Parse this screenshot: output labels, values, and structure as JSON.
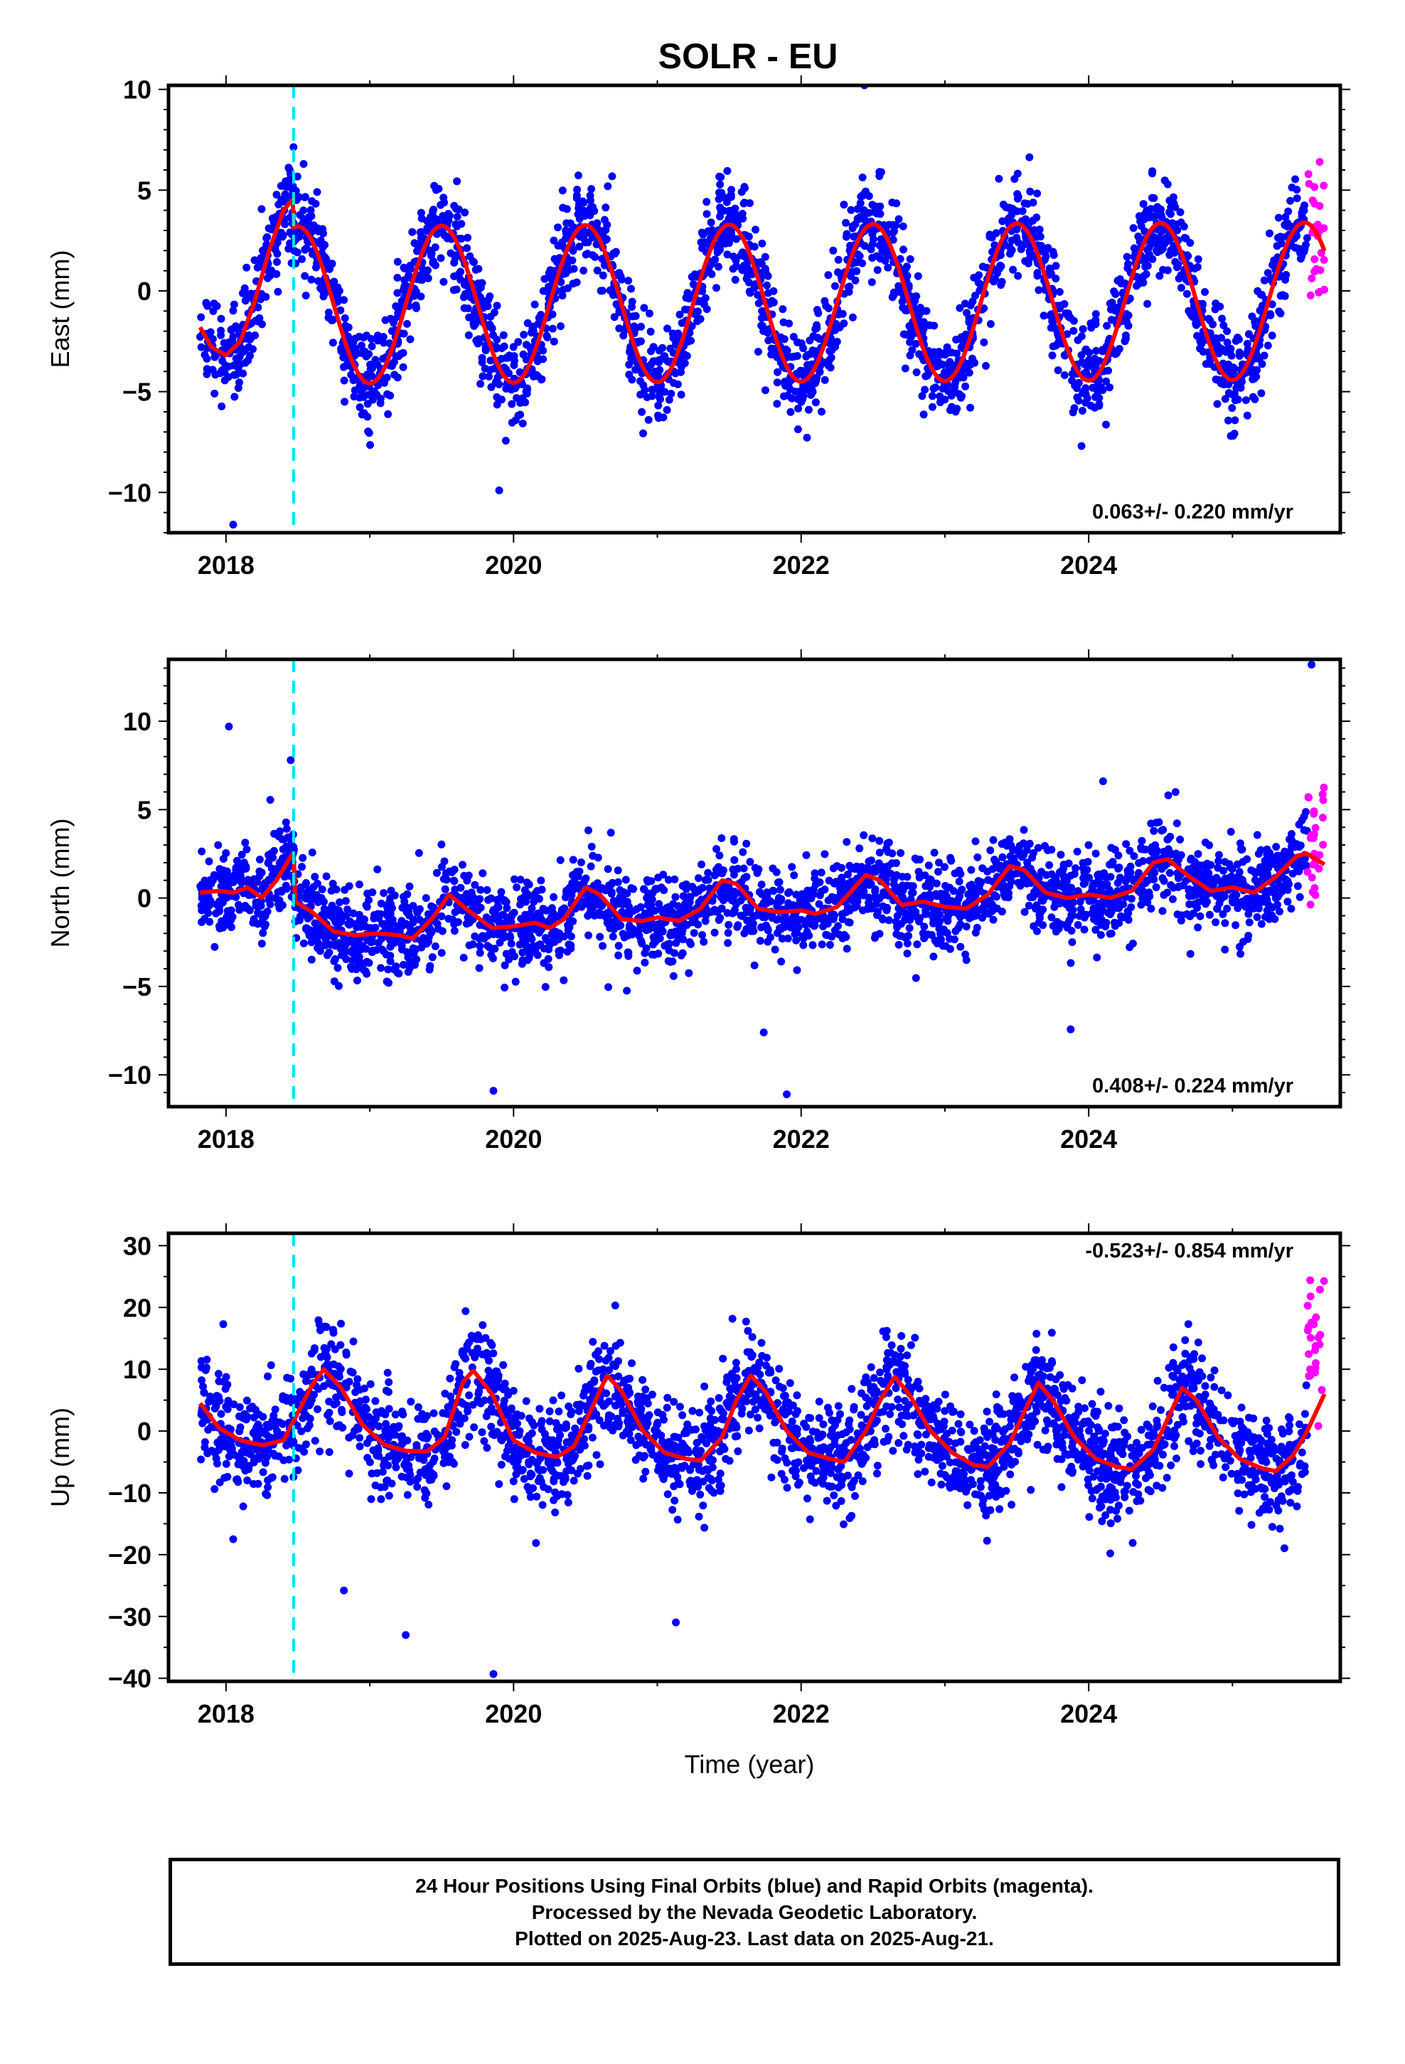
{
  "figure": {
    "title": "SOLR - EU",
    "xlabel": "Time (year)",
    "colors": {
      "final": "#0000ff",
      "rapid": "#ff00ff",
      "model": "#ff0000",
      "offset": "#00e5ee",
      "frame": "#000000"
    }
  },
  "caption": {
    "lines": [
      "24 Hour Positions Using Final Orbits (blue) and Rapid Orbits (magenta).",
      "Processed by the Nevada Geodetic Laboratory.",
      "Plotted on 2025-Aug-23. Last data on 2025-Aug-21."
    ]
  },
  "chart_data": [
    {
      "type": "scatter",
      "component": "east",
      "ylabel": "East (mm)",
      "xlim": [
        2017.6,
        2025.75
      ],
      "ylim": [
        -12,
        10.2
      ],
      "xticks": [
        2018,
        2020,
        2022,
        2024
      ],
      "yticks": [
        -10,
        -5,
        0,
        5,
        10
      ],
      "rate_label": "0.063+/- 0.220 mm/yr",
      "rate_position": "bottom-right",
      "offset_epoch": 2018.47,
      "data_start": 2017.82,
      "final_end": 2025.52,
      "rapid_end": 2025.64,
      "model": {
        "segments": [
          {
            "range": [
              2017.82,
              2018.47
            ],
            "points": [
              [
                2017.82,
                -1.8
              ],
              [
                2017.9,
                -2.8
              ],
              [
                2018.0,
                -3.2
              ],
              [
                2018.1,
                -2.5
              ],
              [
                2018.2,
                -0.5
              ],
              [
                2018.3,
                2.0
              ],
              [
                2018.4,
                4.0
              ],
              [
                2018.47,
                4.6
              ]
            ]
          },
          {
            "range": [
              2018.47,
              2025.64
            ],
            "amplitude": 3.9,
            "peak_phase": 0.5,
            "base_start": -0.7,
            "base_end": -0.5
          }
        ]
      },
      "scatter_sigma": 1.2,
      "anomalies": [
        {
          "x": 2018.05,
          "y": -11.6
        },
        {
          "x": 2019.9,
          "y": -9.9
        },
        {
          "x": 2022.44,
          "y": 10.2
        },
        {
          "x": 2023.95,
          "y": -7.7
        }
      ]
    },
    {
      "type": "scatter",
      "component": "north",
      "ylabel": "North (mm)",
      "xlim": [
        2017.6,
        2025.75
      ],
      "ylim": [
        -11.8,
        13.5
      ],
      "xticks": [
        2018,
        2020,
        2022,
        2024
      ],
      "yticks": [
        -10,
        -5,
        0,
        5,
        10
      ],
      "rate_label": "0.408+/- 0.224 mm/yr",
      "rate_position": "bottom-right",
      "offset_epoch": 2018.47,
      "data_start": 2017.82,
      "final_end": 2025.52,
      "rapid_end": 2025.64,
      "model": {
        "points": [
          [
            2017.82,
            0.3
          ],
          [
            2017.95,
            0.4
          ],
          [
            2018.05,
            0.3
          ],
          [
            2018.15,
            0.6
          ],
          [
            2018.25,
            0.0
          ],
          [
            2018.35,
            1.0
          ],
          [
            2018.47,
            2.6
          ],
          [
            2018.48,
            -0.2
          ],
          [
            2018.6,
            -0.8
          ],
          [
            2018.75,
            -1.9
          ],
          [
            2018.9,
            -2.1
          ],
          [
            2019.05,
            -2.0
          ],
          [
            2019.2,
            -2.1
          ],
          [
            2019.3,
            -2.3
          ],
          [
            2019.45,
            -1.0
          ],
          [
            2019.55,
            0.2
          ],
          [
            2019.7,
            -0.8
          ],
          [
            2019.85,
            -1.7
          ],
          [
            2020.0,
            -1.6
          ],
          [
            2020.15,
            -1.4
          ],
          [
            2020.25,
            -1.7
          ],
          [
            2020.35,
            -1.2
          ],
          [
            2020.5,
            0.6
          ],
          [
            2020.6,
            0.2
          ],
          [
            2020.75,
            -1.2
          ],
          [
            2020.9,
            -1.3
          ],
          [
            2021.0,
            -1.1
          ],
          [
            2021.15,
            -1.3
          ],
          [
            2021.3,
            -0.6
          ],
          [
            2021.45,
            1.0
          ],
          [
            2021.55,
            0.8
          ],
          [
            2021.7,
            -0.6
          ],
          [
            2021.85,
            -0.8
          ],
          [
            2022.0,
            -0.7
          ],
          [
            2022.1,
            -0.9
          ],
          [
            2022.25,
            -0.5
          ],
          [
            2022.45,
            1.3
          ],
          [
            2022.55,
            1.0
          ],
          [
            2022.7,
            -0.4
          ],
          [
            2022.85,
            -0.2
          ],
          [
            2023.0,
            -0.5
          ],
          [
            2023.15,
            -0.6
          ],
          [
            2023.3,
            0.2
          ],
          [
            2023.45,
            1.8
          ],
          [
            2023.55,
            1.6
          ],
          [
            2023.7,
            0.3
          ],
          [
            2023.85,
            0.0
          ],
          [
            2024.0,
            0.2
          ],
          [
            2024.15,
            0.0
          ],
          [
            2024.3,
            0.4
          ],
          [
            2024.45,
            2.0
          ],
          [
            2024.55,
            2.2
          ],
          [
            2024.7,
            1.2
          ],
          [
            2024.85,
            0.4
          ],
          [
            2025.0,
            0.6
          ],
          [
            2025.15,
            0.3
          ],
          [
            2025.3,
            1.2
          ],
          [
            2025.45,
            2.4
          ],
          [
            2025.52,
            2.5
          ],
          [
            2025.64,
            1.9
          ]
        ]
      },
      "scatter_sigma": 1.2,
      "anomalies": [
        {
          "x": 2018.02,
          "y": 9.7
        },
        {
          "x": 2018.45,
          "y": 7.8
        },
        {
          "x": 2019.86,
          "y": -10.9
        },
        {
          "x": 2021.74,
          "y": -7.6
        },
        {
          "x": 2021.9,
          "y": -11.1
        },
        {
          "x": 2024.1,
          "y": 6.6
        },
        {
          "x": 2025.55,
          "y": 13.2
        }
      ]
    },
    {
      "type": "scatter",
      "component": "up",
      "ylabel": "Up (mm)",
      "xlim": [
        2017.6,
        2025.75
      ],
      "ylim": [
        -40.5,
        32
      ],
      "xticks": [
        2018,
        2020,
        2022,
        2024
      ],
      "yticks": [
        -40,
        -30,
        -20,
        -10,
        0,
        10,
        20,
        30
      ],
      "rate_label": "-0.523+/- 0.854 mm/yr",
      "rate_position": "top-right",
      "offset_epoch": 2018.47,
      "data_start": 2017.82,
      "final_end": 2025.52,
      "rapid_end": 2025.64,
      "model": {
        "points": [
          [
            2017.82,
            4.5
          ],
          [
            2017.95,
            0.5
          ],
          [
            2018.1,
            -1.5
          ],
          [
            2018.25,
            -2.3
          ],
          [
            2018.4,
            -1.5
          ],
          [
            2018.5,
            3.0
          ],
          [
            2018.6,
            7.5
          ],
          [
            2018.68,
            10.0
          ],
          [
            2018.8,
            7.0
          ],
          [
            2018.95,
            1.0
          ],
          [
            2019.1,
            -2.2
          ],
          [
            2019.25,
            -3.2
          ],
          [
            2019.4,
            -3.3
          ],
          [
            2019.52,
            -1.0
          ],
          [
            2019.65,
            8.0
          ],
          [
            2019.72,
            9.8
          ],
          [
            2019.85,
            6.0
          ],
          [
            2020.0,
            -1.5
          ],
          [
            2020.15,
            -3.5
          ],
          [
            2020.3,
            -4.2
          ],
          [
            2020.42,
            -2.5
          ],
          [
            2020.55,
            4.0
          ],
          [
            2020.65,
            9.0
          ],
          [
            2020.75,
            6.5
          ],
          [
            2020.9,
            0.0
          ],
          [
            2021.05,
            -3.5
          ],
          [
            2021.2,
            -4.5
          ],
          [
            2021.3,
            -4.8
          ],
          [
            2021.45,
            -1.0
          ],
          [
            2021.55,
            5.0
          ],
          [
            2021.65,
            9.0
          ],
          [
            2021.75,
            6.5
          ],
          [
            2021.9,
            0.0
          ],
          [
            2022.05,
            -3.5
          ],
          [
            2022.2,
            -4.5
          ],
          [
            2022.3,
            -5.0
          ],
          [
            2022.45,
            0.0
          ],
          [
            2022.55,
            5.0
          ],
          [
            2022.65,
            8.8
          ],
          [
            2022.75,
            6.0
          ],
          [
            2022.9,
            0.0
          ],
          [
            2023.05,
            -3.5
          ],
          [
            2023.2,
            -5.5
          ],
          [
            2023.3,
            -5.8
          ],
          [
            2023.45,
            -2.0
          ],
          [
            2023.55,
            3.0
          ],
          [
            2023.65,
            7.8
          ],
          [
            2023.75,
            5.0
          ],
          [
            2023.9,
            -1.0
          ],
          [
            2024.05,
            -4.5
          ],
          [
            2024.2,
            -5.8
          ],
          [
            2024.3,
            -6.2
          ],
          [
            2024.45,
            -3.0
          ],
          [
            2024.55,
            2.0
          ],
          [
            2024.65,
            7.0
          ],
          [
            2024.75,
            5.0
          ],
          [
            2024.9,
            -1.0
          ],
          [
            2025.05,
            -4.5
          ],
          [
            2025.2,
            -6.0
          ],
          [
            2025.3,
            -6.5
          ],
          [
            2025.42,
            -4.0
          ],
          [
            2025.52,
            0.0
          ],
          [
            2025.64,
            6.0
          ]
        ]
      },
      "scatter_sigma": 4.2,
      "anomalies": [
        {
          "x": 2018.05,
          "y": -17.5
        },
        {
          "x": 2018.82,
          "y": -25.8
        },
        {
          "x": 2019.25,
          "y": -33.0
        },
        {
          "x": 2019.86,
          "y": -39.3
        },
        {
          "x": 2024.15,
          "y": -19.8
        }
      ]
    }
  ]
}
